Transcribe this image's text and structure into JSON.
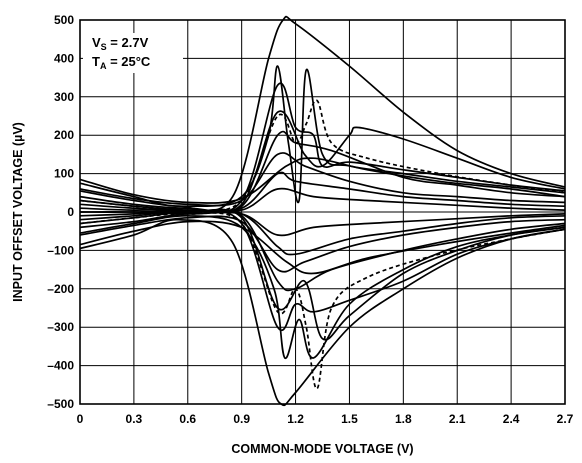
{
  "chart_data": {
    "type": "line",
    "xlabel": "COMMON-MODE VOLTAGE (V)",
    "ylabel": "INPUT OFFSET VOLTAGE (µV)",
    "xlim": [
      0,
      2.7
    ],
    "ylim": [
      -500,
      500
    ],
    "x_ticks": [
      "0",
      "0.3",
      "0.6",
      "0.9",
      "1.2",
      "1.5",
      "1.8",
      "2.1",
      "2.4",
      "2.7"
    ],
    "y_ticks": [
      "500",
      "400",
      "300",
      "200",
      "100",
      "0",
      "–100",
      "–200",
      "–300",
      "–400",
      "–500"
    ],
    "grid": true,
    "annotation": {
      "line1": {
        "prefix": "V",
        "sub": "S",
        "suffix": " = 2.7V"
      },
      "line2": {
        "prefix": "T",
        "sub": "A",
        "suffix": " = 25°C"
      }
    },
    "series": [
      {
        "x": [
          0,
          0.3,
          0.55,
          0.85,
          1.05,
          1.13,
          1.2,
          1.5,
          1.8,
          2.1,
          2.4,
          2.7
        ],
        "values": [
          75,
          40,
          15,
          40,
          400,
          500,
          490,
          380,
          260,
          160,
          100,
          65
        ]
      },
      {
        "x": [
          0,
          0.3,
          0.55,
          0.85,
          1.05,
          1.12,
          1.2,
          1.5,
          1.8,
          2.1,
          2.4,
          2.7
        ],
        "values": [
          -95,
          -60,
          -20,
          -80,
          -420,
          -500,
          -470,
          -300,
          -200,
          -120,
          -70,
          -45
        ]
      },
      {
        "x": [
          0,
          0.3,
          0.6,
          0.9,
          1.05,
          1.1,
          1.16,
          1.22,
          1.26,
          1.35,
          1.5,
          1.8,
          2.1,
          2.4,
          2.7
        ],
        "values": [
          55,
          30,
          15,
          40,
          200,
          380,
          180,
          30,
          370,
          150,
          120,
          100,
          80,
          65,
          50
        ]
      },
      {
        "x": [
          0,
          0.3,
          0.6,
          0.9,
          1.08,
          1.14,
          1.22,
          1.3,
          1.5,
          1.8,
          2.1,
          2.4,
          2.7
        ],
        "values": [
          -55,
          -30,
          -10,
          -40,
          -200,
          -380,
          -280,
          -380,
          -240,
          -150,
          -90,
          -60,
          -40
        ]
      },
      {
        "x": [
          0,
          0.3,
          0.6,
          0.9,
          1.1,
          1.2,
          1.3,
          1.35,
          1.5,
          1.8,
          2.1,
          2.4,
          2.7
        ],
        "values": [
          20,
          10,
          5,
          30,
          330,
          220,
          200,
          120,
          130,
          110,
          90,
          70,
          55
        ]
      },
      {
        "x": [
          0,
          0.3,
          0.6,
          0.9,
          1.1,
          1.2,
          1.3,
          1.5,
          1.8,
          2.1,
          2.4,
          2.7
        ],
        "values": [
          -20,
          -10,
          0,
          -30,
          -300,
          -240,
          -260,
          -230,
          -180,
          -110,
          -70,
          -45
        ]
      },
      {
        "x": [
          0,
          0.3,
          0.6,
          0.9,
          1.1,
          1.25,
          1.35,
          1.5,
          1.55,
          1.8,
          2.1,
          2.4,
          2.7
        ],
        "values": [
          40,
          20,
          10,
          20,
          260,
          150,
          120,
          200,
          220,
          190,
          140,
          90,
          60
        ]
      },
      {
        "x": [
          0,
          0.3,
          0.6,
          0.9,
          1.1,
          1.25,
          1.35,
          1.5,
          1.8,
          2.1,
          2.4,
          2.7
        ],
        "values": [
          -40,
          -25,
          -5,
          -15,
          -250,
          -180,
          -330,
          -270,
          -160,
          -100,
          -60,
          -40
        ]
      },
      {
        "x": [
          0,
          0.3,
          0.6,
          0.9,
          1.1,
          1.2,
          1.4,
          1.8,
          2.1,
          2.4,
          2.7
        ],
        "values": [
          10,
          5,
          10,
          15,
          200,
          180,
          160,
          90,
          70,
          50,
          40
        ]
      },
      {
        "x": [
          0,
          0.3,
          0.6,
          0.9,
          1.1,
          1.2,
          1.4,
          1.8,
          2.1,
          2.4,
          2.7
        ],
        "values": [
          -10,
          -5,
          0,
          -10,
          -180,
          -200,
          -150,
          -100,
          -70,
          -45,
          -30
        ]
      },
      {
        "x": [
          0,
          0.3,
          0.6,
          0.9,
          1.1,
          1.25,
          1.5,
          1.8,
          2.1,
          2.4,
          2.7
        ],
        "values": [
          60,
          35,
          20,
          30,
          150,
          120,
          80,
          50,
          40,
          30,
          25
        ]
      },
      {
        "x": [
          0,
          0.3,
          0.6,
          0.9,
          1.1,
          1.25,
          1.5,
          1.8,
          2.1,
          2.4,
          2.7
        ],
        "values": [
          -60,
          -35,
          -15,
          -25,
          -150,
          -130,
          -90,
          -60,
          -40,
          -25,
          -20
        ]
      },
      {
        "x": [
          0,
          0.3,
          0.6,
          0.9,
          1.1,
          1.2,
          1.5,
          1.8,
          2.1,
          2.4,
          2.7
        ],
        "values": [
          30,
          15,
          5,
          10,
          100,
          80,
          60,
          40,
          30,
          20,
          15
        ]
      },
      {
        "x": [
          0,
          0.3,
          0.6,
          0.9,
          1.1,
          1.2,
          1.5,
          1.8,
          2.1,
          2.4,
          2.7
        ],
        "values": [
          -30,
          -15,
          0,
          -5,
          -90,
          -110,
          -70,
          -50,
          -30,
          -15,
          -10
        ]
      },
      {
        "x": [
          0,
          0.3,
          0.6,
          0.9,
          1.1,
          1.3,
          1.6,
          2.0,
          2.4,
          2.7
        ],
        "values": [
          0,
          0,
          5,
          5,
          60,
          40,
          30,
          20,
          10,
          5
        ]
      },
      {
        "x": [
          0,
          0.3,
          0.6,
          0.9,
          1.1,
          1.3,
          1.6,
          2.0,
          2.4,
          2.7
        ],
        "values": [
          0,
          0,
          -5,
          -5,
          -60,
          -40,
          -30,
          -20,
          -10,
          -5
        ]
      },
      {
        "x": [
          0,
          0.3,
          0.6,
          0.9,
          1.15,
          1.3,
          1.6,
          2.0,
          2.4,
          2.7
        ],
        "values": [
          85,
          45,
          25,
          35,
          120,
          140,
          110,
          80,
          60,
          40
        ]
      },
      {
        "x": [
          0,
          0.3,
          0.6,
          0.9,
          1.15,
          1.3,
          1.6,
          2.0,
          2.4,
          2.7
        ],
        "values": [
          -85,
          -50,
          -25,
          -40,
          -130,
          -160,
          -120,
          -85,
          -55,
          -35
        ]
      }
    ],
    "dashed_series": [
      {
        "x": [
          0,
          0.3,
          0.6,
          0.9,
          1.1,
          1.2,
          1.26,
          1.32,
          1.4,
          1.6,
          2.0,
          2.4,
          2.7
        ],
        "values": [
          30,
          15,
          5,
          30,
          250,
          180,
          230,
          290,
          180,
          140,
          100,
          70,
          50
        ]
      },
      {
        "x": [
          0,
          0.3,
          0.6,
          0.9,
          1.1,
          1.2,
          1.26,
          1.32,
          1.4,
          1.6,
          2.0,
          2.4,
          2.7
        ],
        "values": [
          -30,
          -15,
          -5,
          -30,
          -260,
          -200,
          -300,
          -460,
          -250,
          -170,
          -110,
          -70,
          -45
        ]
      }
    ]
  }
}
